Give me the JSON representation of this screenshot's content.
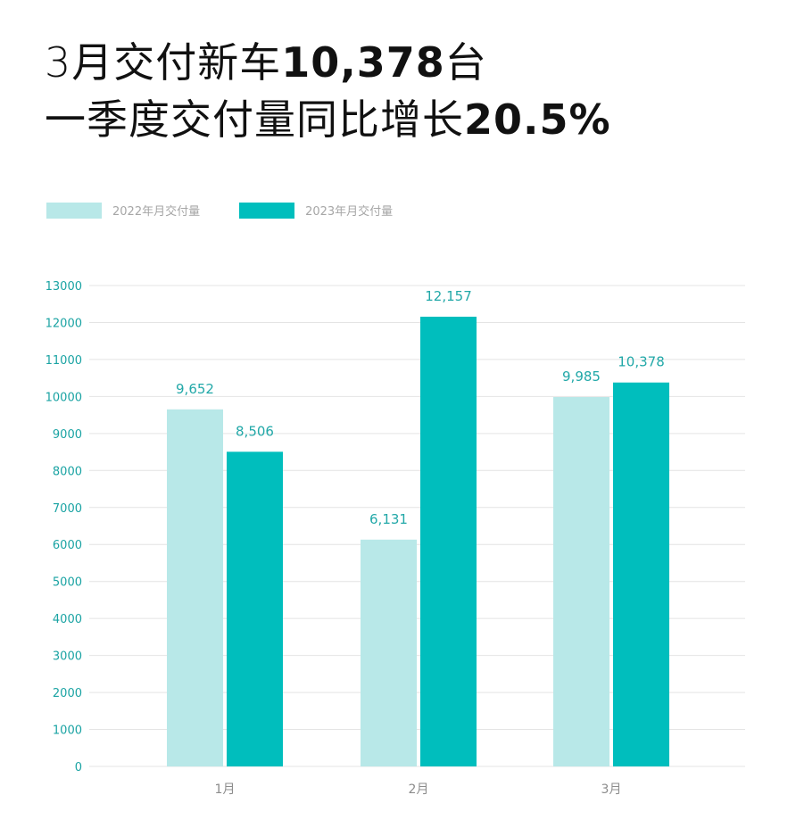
{
  "headline": {
    "line1_pre": "3月交付新车",
    "line1_num": "10,378",
    "line1_post": "台",
    "line2_pre": "一季度交付量同比增长",
    "line2_num": "20.5%"
  },
  "colors": {
    "series_2022": "#b8e8e8",
    "series_2023": "#00bebd",
    "axis_text": "#1aa3a3",
    "label_text": "#22a8a8",
    "category_text": "#8c8c8c",
    "grid": "#e4e4e4"
  },
  "chart_data": {
    "type": "bar",
    "categories": [
      "1月",
      "2月",
      "3月"
    ],
    "series": [
      {
        "name": "2022年月交付量",
        "values": [
          9652,
          6131,
          9985
        ],
        "labels": [
          "9,652",
          "6,131",
          "9,985"
        ]
      },
      {
        "name": "2023年月交付量",
        "values": [
          8506,
          12157,
          10378
        ],
        "labels": [
          "8,506",
          "12,157",
          "10,378"
        ]
      }
    ],
    "ylim": [
      0,
      13000
    ],
    "yticks": [
      0,
      1000,
      2000,
      3000,
      4000,
      5000,
      6000,
      7000,
      8000,
      9000,
      10000,
      11000,
      12000,
      13000
    ],
    "grid": true,
    "legend_position": "top-left"
  }
}
